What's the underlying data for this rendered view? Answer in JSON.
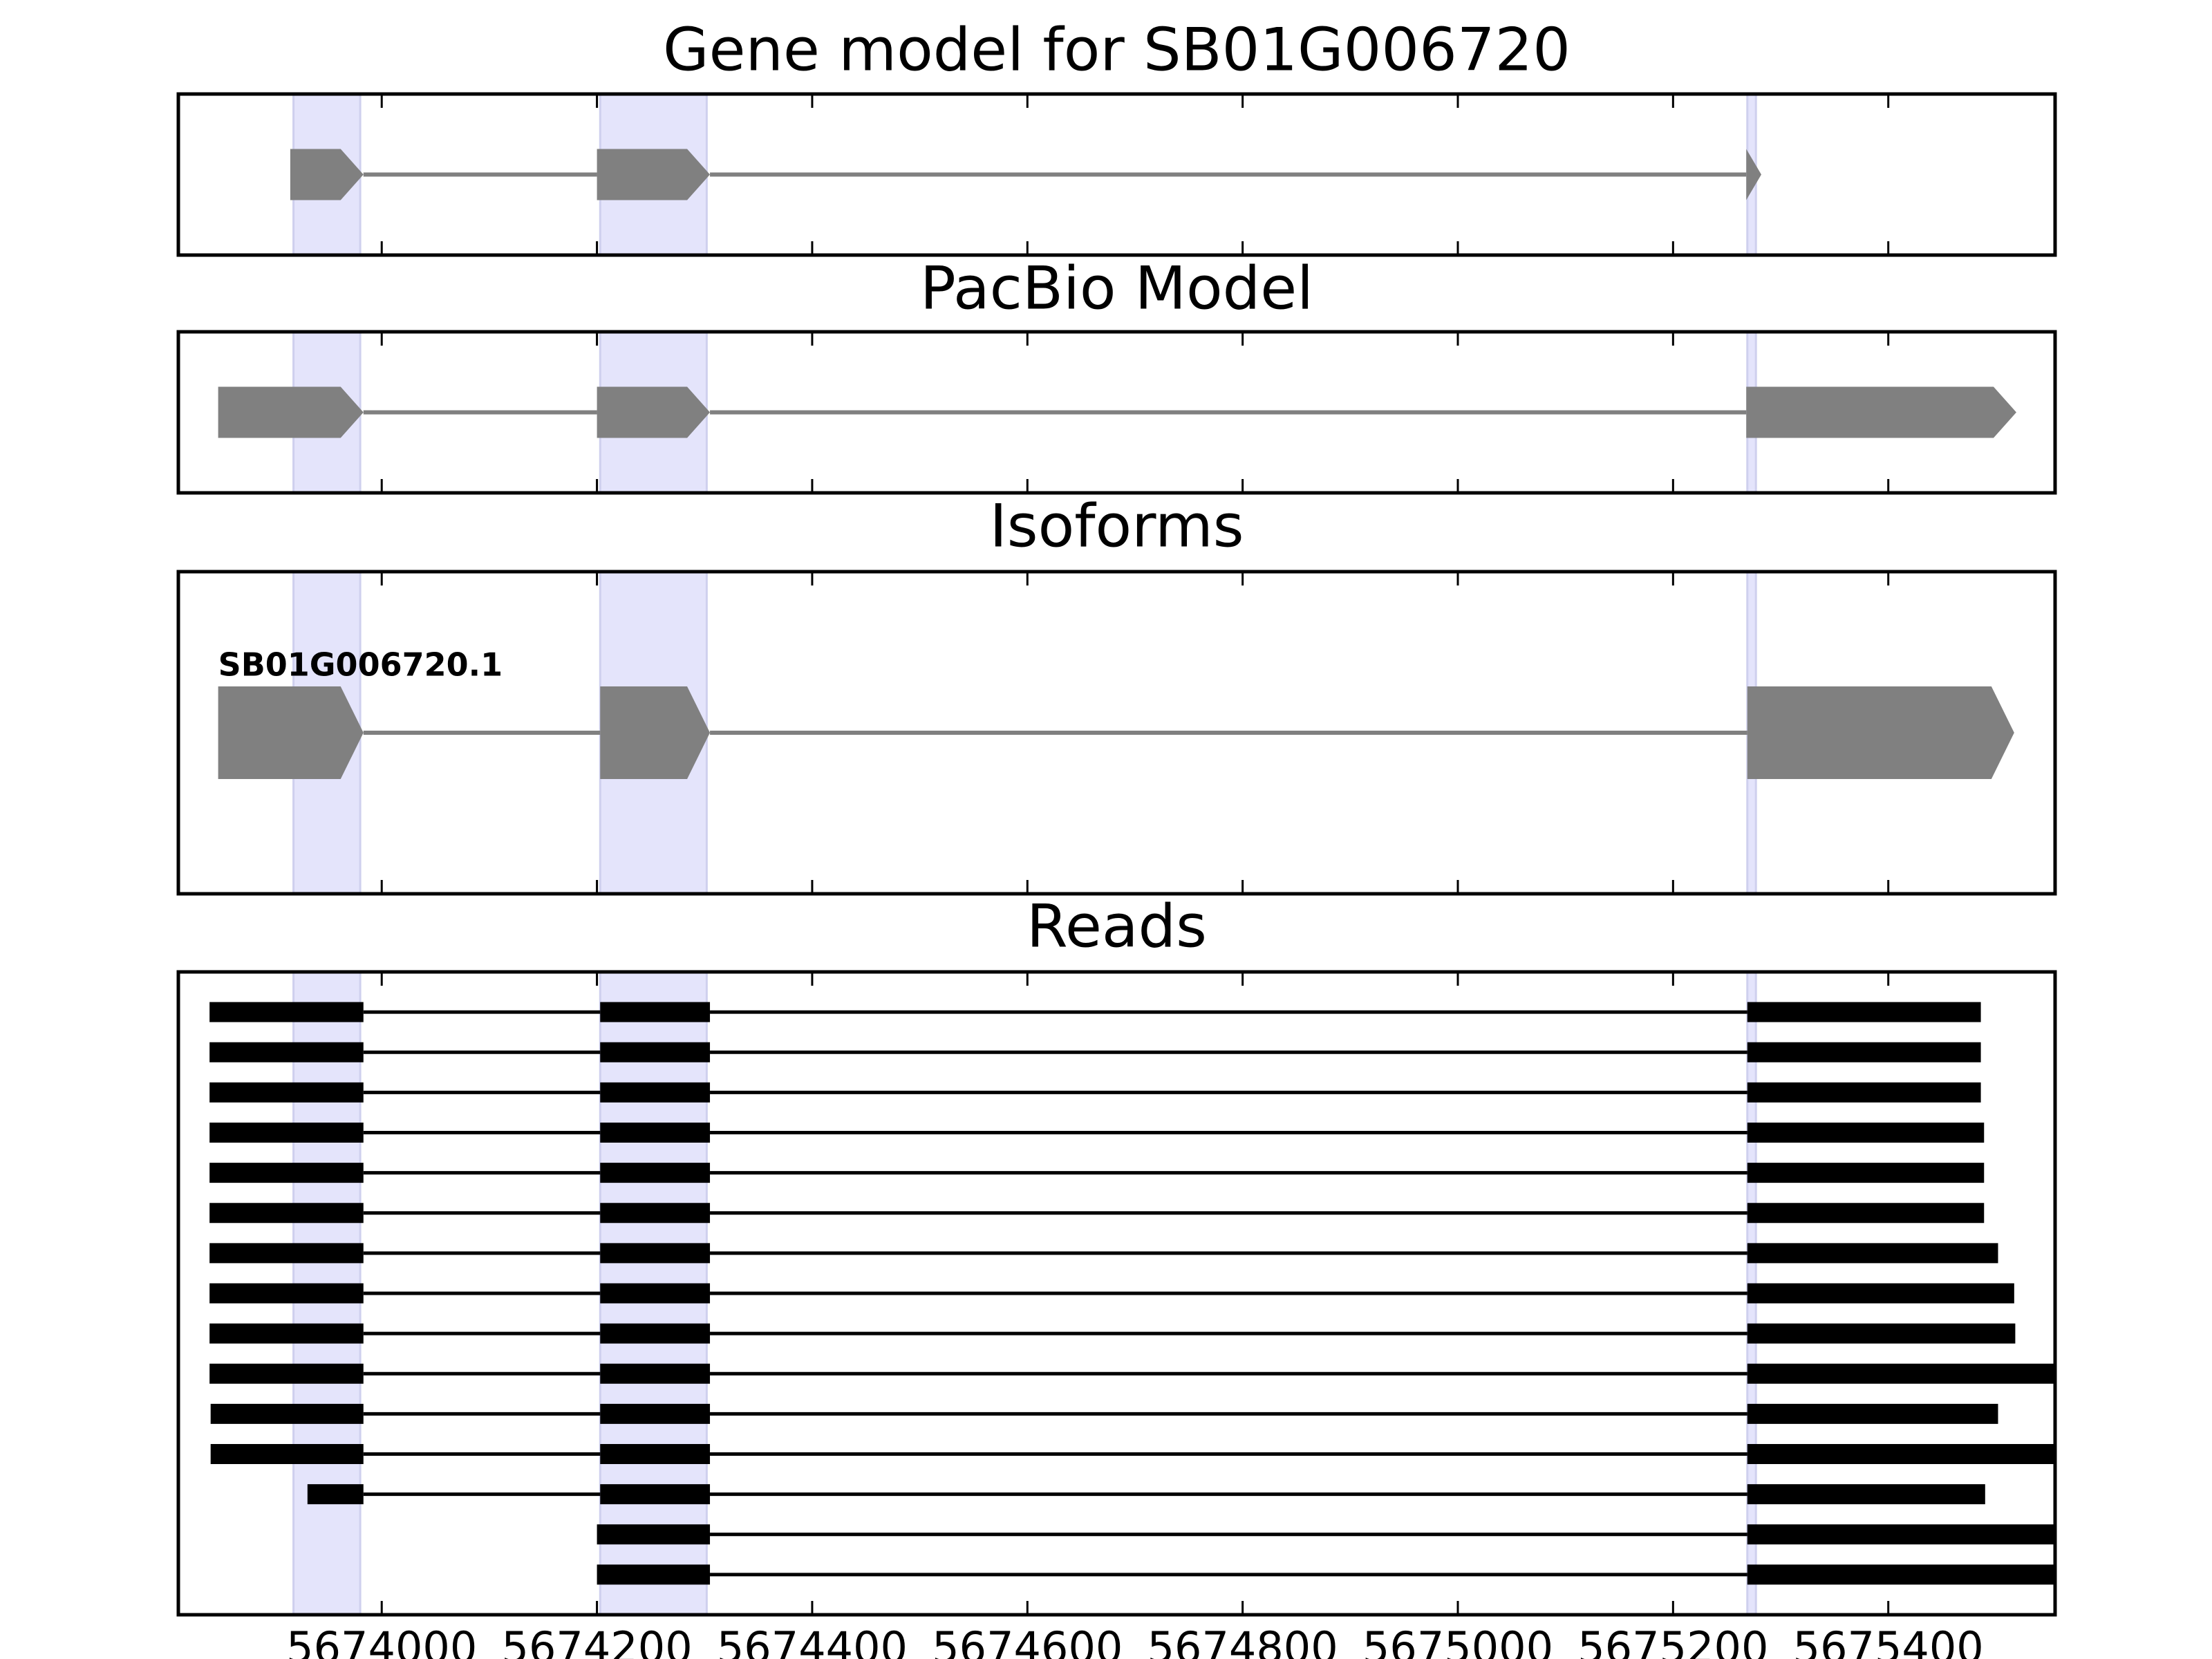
{
  "chart_data": [
    {
      "type": "gene_track",
      "title": "Gene model for SB01G006720",
      "xlim": [
        5673811,
        5675555
      ],
      "xticks": [
        5674000,
        5674200,
        5674400,
        5674600,
        5674800,
        5675000,
        5675200,
        5675400
      ],
      "show_tick_labels": false,
      "color": "#808080",
      "shape": "arrow",
      "highlights": [
        [
          5673918,
          5673980
        ],
        [
          5674203,
          5674302
        ],
        [
          5675269,
          5675277
        ]
      ],
      "features": [
        {
          "exons": [
            [
              5673915,
              5673983
            ],
            [
              5674200,
              5674305
            ],
            [
              5675268,
              5675282
            ]
          ]
        }
      ]
    },
    {
      "type": "gene_track",
      "title": "PacBio Model",
      "xlim": [
        5673811,
        5675555
      ],
      "xticks": [
        5674000,
        5674200,
        5674400,
        5674600,
        5674800,
        5675000,
        5675200,
        5675400
      ],
      "show_tick_labels": false,
      "color": "#808080",
      "shape": "arrow",
      "highlights": [
        [
          5673918,
          5673980
        ],
        [
          5674203,
          5674302
        ],
        [
          5675269,
          5675277
        ]
      ],
      "features": [
        {
          "exons": [
            [
              5673848,
              5673983
            ],
            [
              5674200,
              5674305
            ],
            [
              5675268,
              5675519
            ]
          ]
        }
      ]
    },
    {
      "type": "gene_track",
      "title": "Isoforms",
      "xlim": [
        5673811,
        5675555
      ],
      "xticks": [
        5674000,
        5674200,
        5674400,
        5674600,
        5674800,
        5675000,
        5675200,
        5675400
      ],
      "show_tick_labels": false,
      "color": "#808080",
      "shape": "arrow",
      "highlights": [
        [
          5673918,
          5673980
        ],
        [
          5674203,
          5674302
        ],
        [
          5675269,
          5675277
        ]
      ],
      "features": [
        {
          "name": "SB01G006720.1",
          "exons": [
            [
              5673848,
              5673983
            ],
            [
              5674203,
              5674305
            ],
            [
              5675269,
              5675517
            ]
          ]
        }
      ]
    },
    {
      "type": "gene_track",
      "title": "Reads",
      "xlim": [
        5673811,
        5675555
      ],
      "xticks": [
        5674000,
        5674200,
        5674400,
        5674600,
        5674800,
        5675000,
        5675200,
        5675400
      ],
      "show_tick_labels": true,
      "color": "#000000",
      "shape": "bar",
      "highlights": [
        [
          5673918,
          5673980
        ],
        [
          5674203,
          5674302
        ],
        [
          5675269,
          5675277
        ]
      ],
      "features": [
        {
          "exons": [
            [
              5673840,
              5673983
            ],
            [
              5674203,
              5674305
            ],
            [
              5675269,
              5675486
            ]
          ]
        },
        {
          "exons": [
            [
              5673840,
              5673983
            ],
            [
              5674203,
              5674305
            ],
            [
              5675269,
              5675486
            ]
          ]
        },
        {
          "exons": [
            [
              5673840,
              5673983
            ],
            [
              5674203,
              5674305
            ],
            [
              5675269,
              5675486
            ]
          ]
        },
        {
          "exons": [
            [
              5673840,
              5673983
            ],
            [
              5674203,
              5674305
            ],
            [
              5675269,
              5675489
            ]
          ]
        },
        {
          "exons": [
            [
              5673840,
              5673983
            ],
            [
              5674203,
              5674305
            ],
            [
              5675269,
              5675489
            ]
          ]
        },
        {
          "exons": [
            [
              5673840,
              5673983
            ],
            [
              5674203,
              5674305
            ],
            [
              5675269,
              5675489
            ]
          ]
        },
        {
          "exons": [
            [
              5673840,
              5673983
            ],
            [
              5674203,
              5674305
            ],
            [
              5675269,
              5675502
            ]
          ]
        },
        {
          "exons": [
            [
              5673840,
              5673983
            ],
            [
              5674203,
              5674305
            ],
            [
              5675269,
              5675517
            ]
          ]
        },
        {
          "exons": [
            [
              5673840,
              5673983
            ],
            [
              5674203,
              5674305
            ],
            [
              5675269,
              5675518
            ]
          ]
        },
        {
          "exons": [
            [
              5673840,
              5673983
            ],
            [
              5674203,
              5674305
            ],
            [
              5675269,
              5675555
            ]
          ]
        },
        {
          "exons": [
            [
              5673841,
              5673983
            ],
            [
              5674203,
              5674305
            ],
            [
              5675269,
              5675502
            ]
          ]
        },
        {
          "exons": [
            [
              5673841,
              5673983
            ],
            [
              5674203,
              5674305
            ],
            [
              5675269,
              5675555
            ]
          ]
        },
        {
          "exons": [
            [
              5673931,
              5673983
            ],
            [
              5674203,
              5674305
            ],
            [
              5675269,
              5675490
            ]
          ]
        },
        {
          "exons": [
            [
              5674200,
              5674305
            ],
            [
              5675269,
              5675555
            ]
          ]
        },
        {
          "exons": [
            [
              5674200,
              5674305
            ],
            [
              5675269,
              5675555
            ]
          ]
        }
      ]
    }
  ]
}
